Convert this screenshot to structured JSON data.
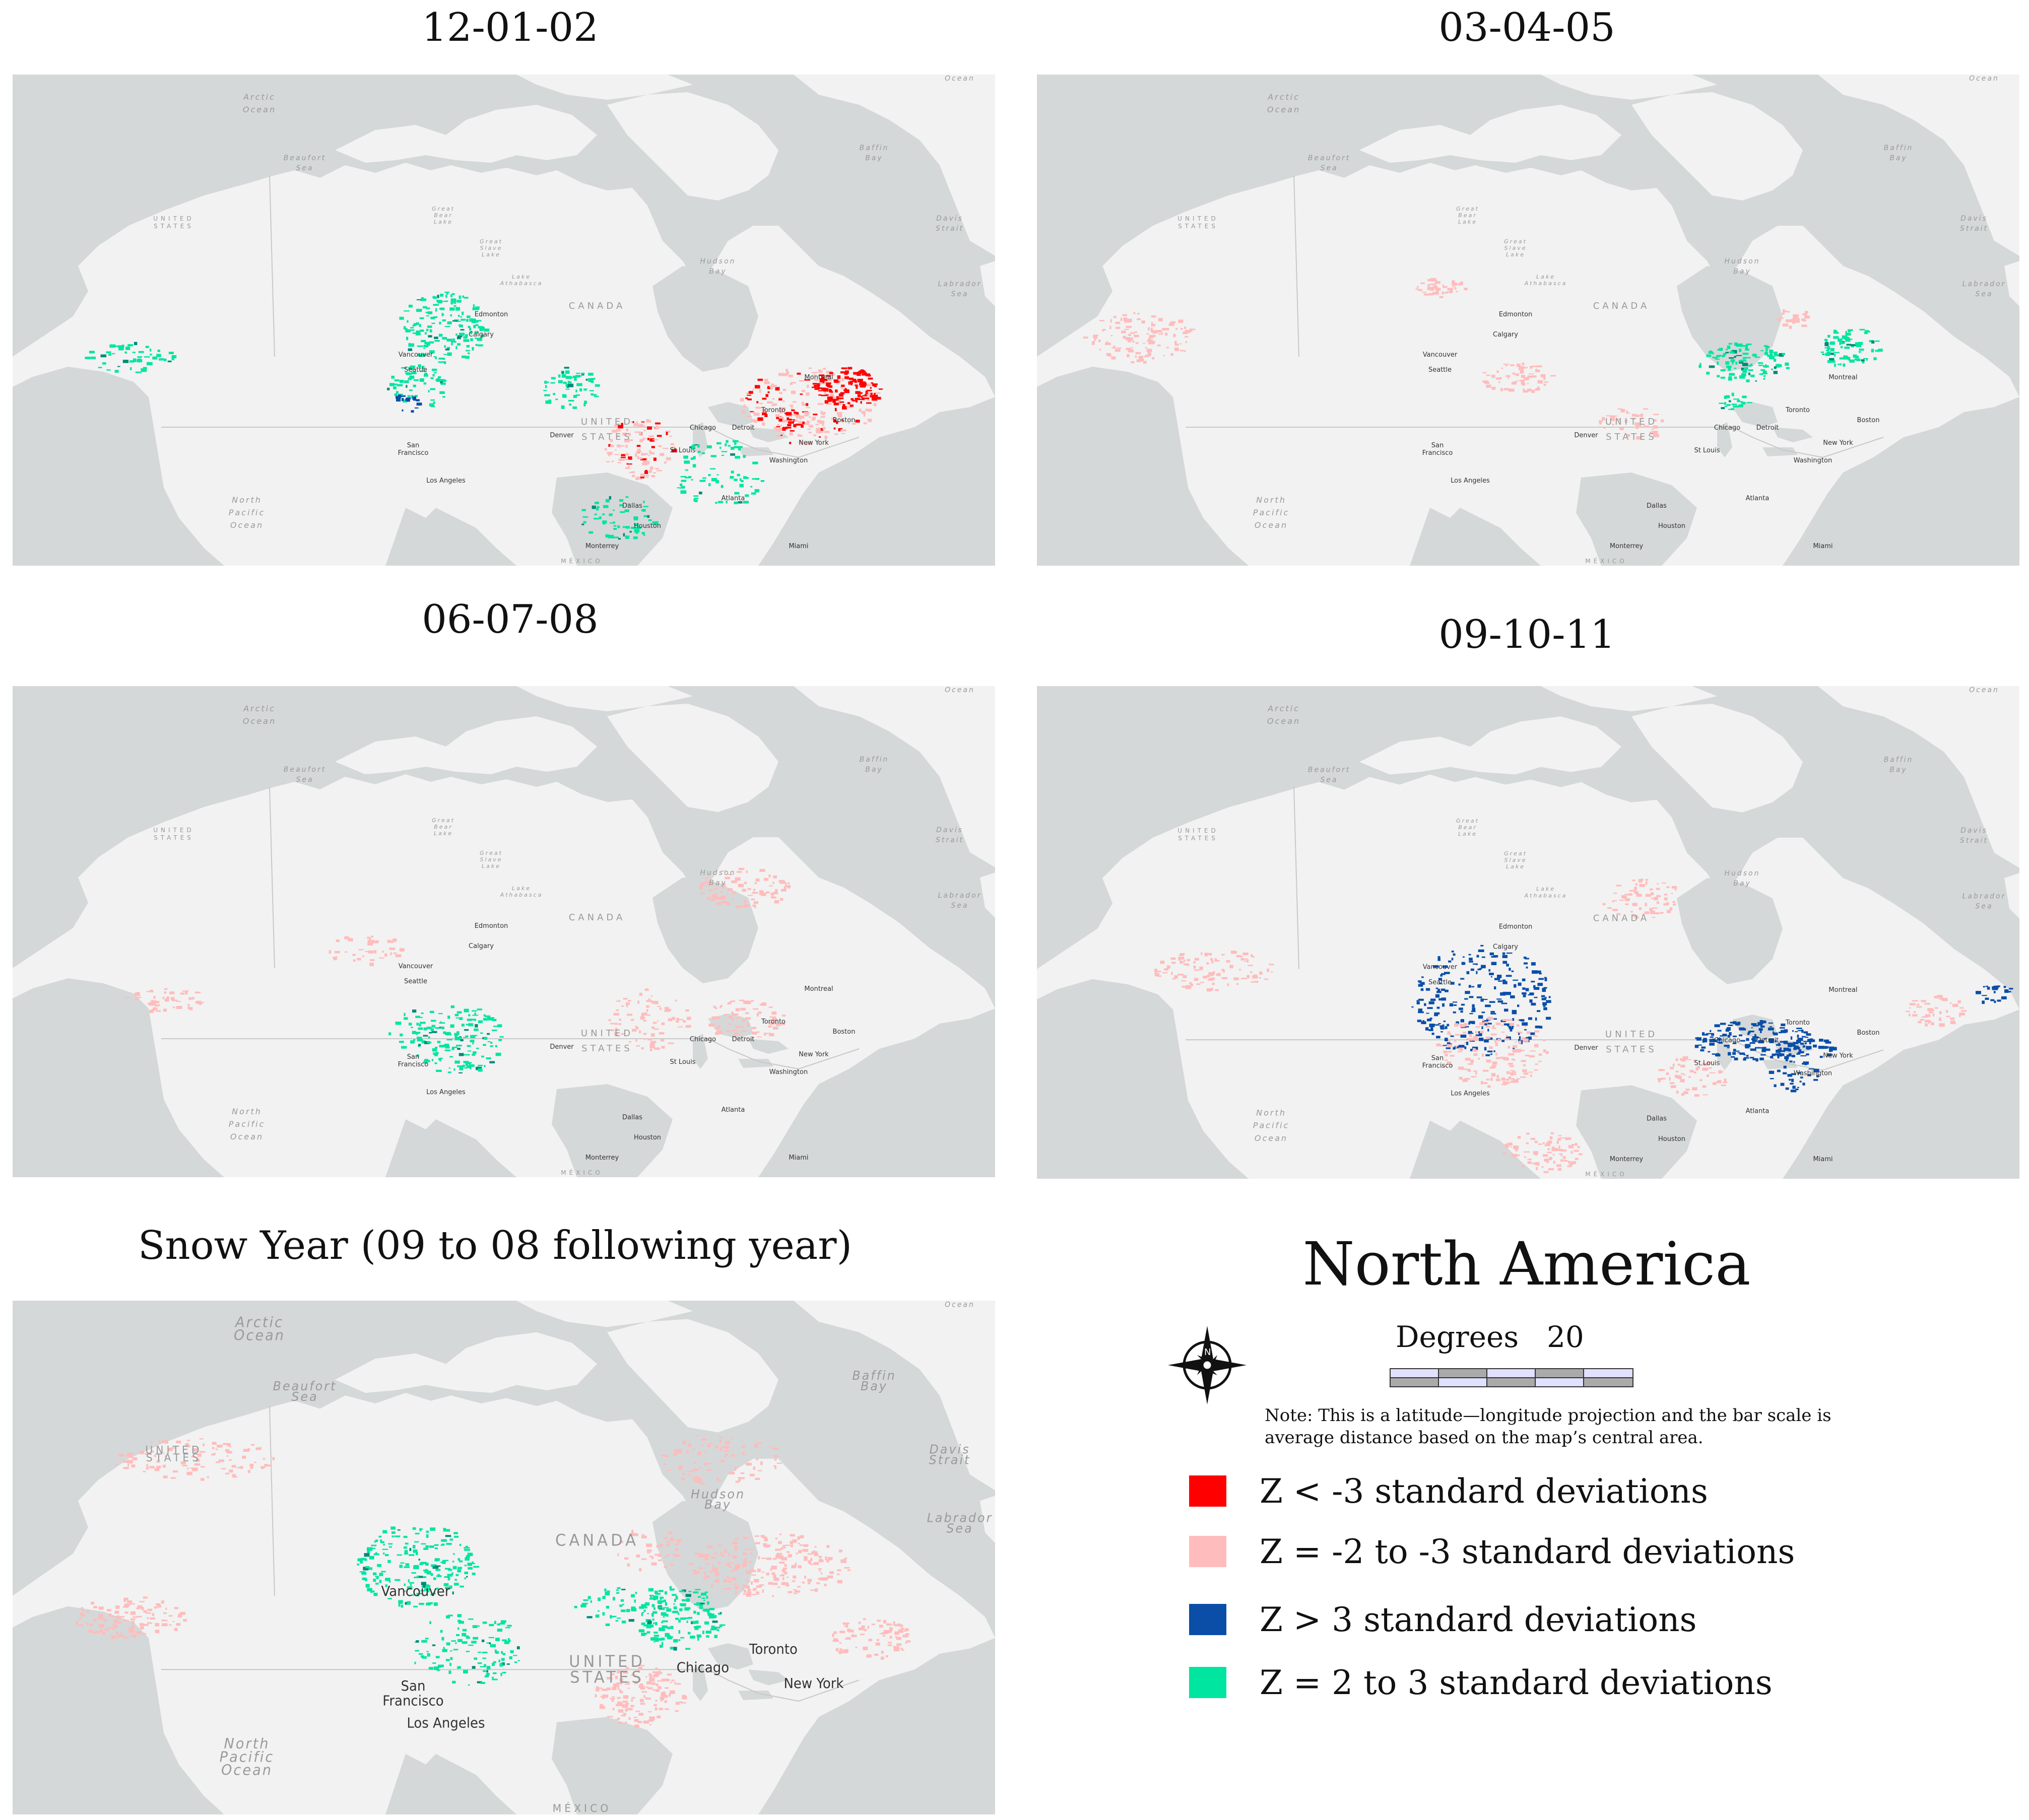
{
  "maps": [
    {
      "id": "m1",
      "title": "12-01-02",
      "labels": {
        "arctic": [
          "Arctic",
          "Ocean"
        ],
        "beaufort": [
          "Beaufort",
          "Sea"
        ],
        "baffin": [
          "Baffin",
          "Bay"
        ],
        "davis": [
          "Davis",
          "Strait"
        ],
        "hudson": [
          "Hudson",
          "Bay"
        ],
        "labrador": [
          "Labrador",
          "Sea"
        ],
        "pacific": [
          "North",
          "Pacific",
          "Ocean"
        ],
        "us_alaska": [
          "UNITED",
          "STATES"
        ],
        "canada": "CANADA",
        "us": [
          "UNITED",
          "STATES"
        ],
        "mexico": "MÉXICO",
        "great_bear": [
          "Great",
          "Bear",
          "Lake"
        ],
        "great_slave": [
          "Great",
          "Slave",
          "Lake"
        ],
        "athabasca": [
          "Lake",
          "Athabasca"
        ],
        "ocean_top": "Ocean"
      },
      "cities": [
        "Edmonton",
        "Calgary",
        "Vancouver",
        "Seattle",
        "San Francisco",
        "Los Angeles",
        "Denver",
        "Dallas",
        "Houston",
        "Monterrey",
        "Chicago",
        "Detroit",
        "Toronto",
        "Montreal",
        "Boston",
        "New York",
        "Washington",
        "St Louis",
        "Atlanta",
        "Miami"
      ]
    },
    {
      "id": "m2",
      "title": "03-04-05"
    },
    {
      "id": "m3",
      "title": "06-07-08"
    },
    {
      "id": "m4",
      "title": "09-10-11"
    },
    {
      "id": "m5",
      "title": "Snow Year  (09 to 08 following year)"
    }
  ],
  "legend": {
    "title": "North America",
    "scale_label": "Degrees",
    "scale_value": "20",
    "note": "Note: This is a latitude—longitude projection and the bar scale is average distance based on the map’s central area.",
    "compass_letter": "N",
    "items": [
      {
        "label": "Z < -3 standard deviations",
        "color": "#ff0000"
      },
      {
        "label": "Z = -2 to -3 standard deviations",
        "color": "#ffbcbc"
      },
      {
        "label": "Z > 3 standard deviations",
        "color": "#0a4ea8"
      },
      {
        "label": "Z = 2 to 3 standard deviations",
        "color": "#00e5a0"
      }
    ]
  },
  "colors": {
    "water": "#d5d8d8",
    "land": "#f2f2f2"
  }
}
